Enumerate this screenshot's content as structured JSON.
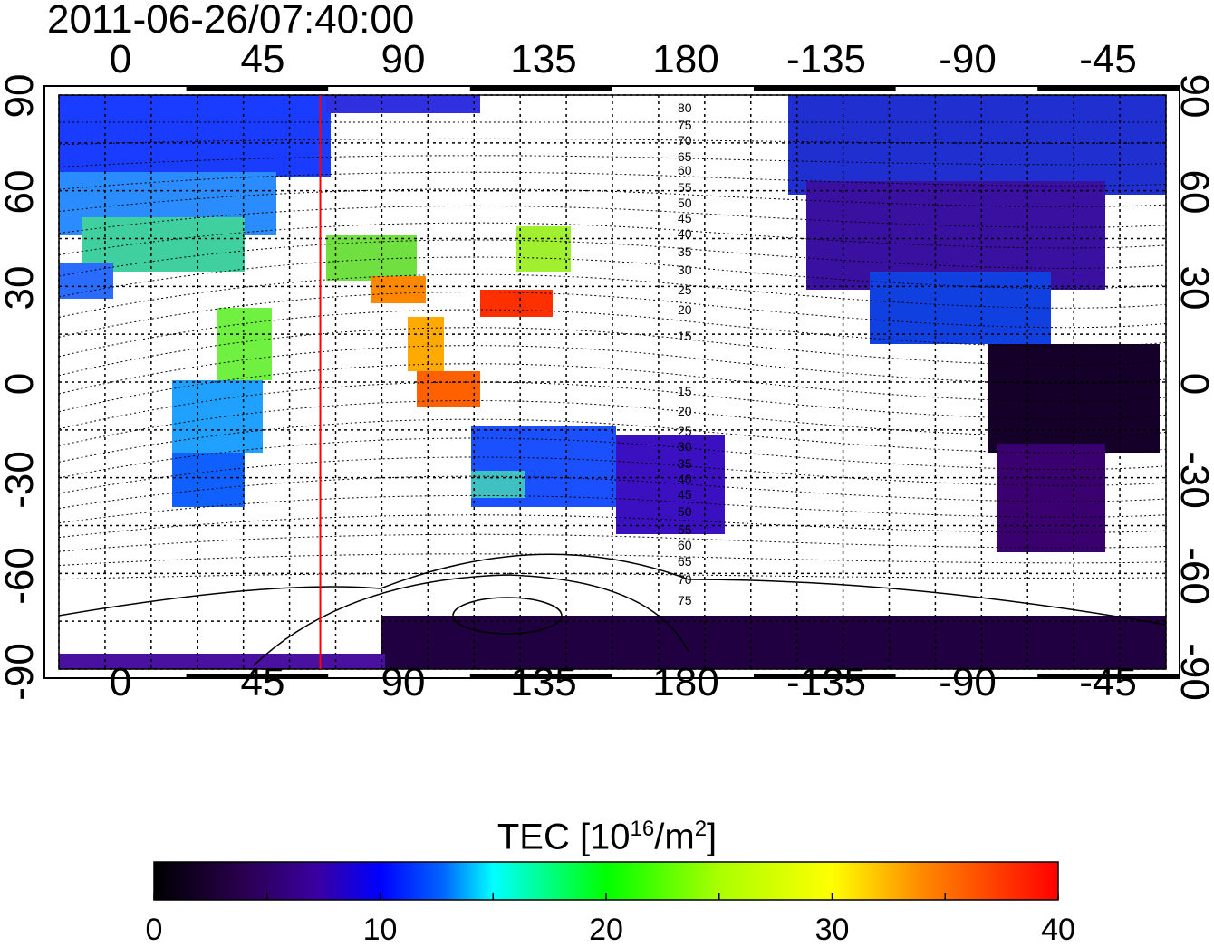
{
  "title": "2011-06-26/07:40:00",
  "map": {
    "top_axis_ticks": [
      "0",
      "45",
      "90",
      "135",
      "180",
      "-135",
      "-90",
      "-45"
    ],
    "bottom_axis_ticks": [
      "0",
      "45",
      "90",
      "135",
      "180",
      "-135",
      "-90",
      "-45"
    ],
    "left_axis_ticks": [
      "90",
      "60",
      "30",
      "0",
      "-30",
      "-60",
      "-90"
    ],
    "right_axis_ticks": [
      "90",
      "60",
      "30",
      "0",
      "-30",
      "-60",
      "-90"
    ],
    "contour_labels": [
      "80",
      "75",
      "70",
      "65",
      "60",
      "55",
      "50",
      "45",
      "40",
      "35",
      "30",
      "25",
      "20",
      "15",
      "15",
      "20",
      "25",
      "30",
      "35",
      "40",
      "45",
      "50",
      "55",
      "60",
      "65",
      "70",
      "75"
    ],
    "red_line_longitude": 65,
    "grid": true
  },
  "colorbar": {
    "title_prefix": "TEC  [10",
    "title_sup": "16",
    "title_mid": "/m",
    "title_sup2": "2",
    "title_suffix": "]",
    "ticks": [
      "0",
      "10",
      "20",
      "30",
      "40"
    ],
    "range": [
      0,
      40
    ],
    "colors": [
      "#000000",
      "#3a0060",
      "#3a00b0",
      "#0000ff",
      "#0088ff",
      "#00ffff",
      "#00ff00",
      "#ffff00",
      "#ff8000",
      "#ff0000"
    ]
  }
}
